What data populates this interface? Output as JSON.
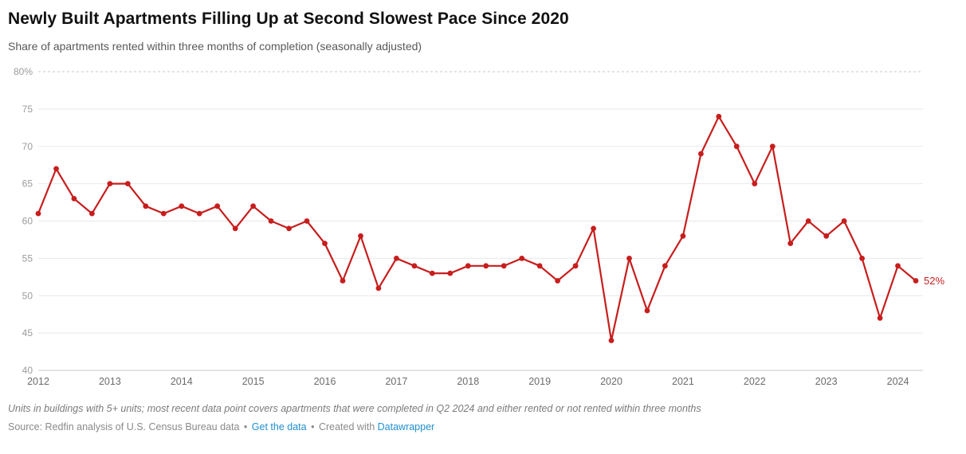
{
  "header": {
    "title": "Newly Built Apartments Filling Up at Second Slowest Pace Since 2020",
    "subtitle": "Share of apartments rented within three months of completion (seasonally adjusted)"
  },
  "chart_data": {
    "type": "line",
    "x_start_year": 2012,
    "period": "quarterly",
    "x_quarter_step": 0.25,
    "values": [
      61,
      67,
      63,
      61,
      65,
      65,
      62,
      61,
      62,
      61,
      62,
      59,
      62,
      60,
      59,
      60,
      57,
      52,
      58,
      51,
      55,
      54,
      53,
      53,
      54,
      54,
      54,
      55,
      54,
      52,
      54,
      59,
      44,
      55,
      48,
      54,
      58,
      69,
      74,
      70,
      65,
      70,
      57,
      60,
      58,
      60,
      55,
      47,
      54,
      52
    ],
    "ylim": [
      40,
      80
    ],
    "yticks": [
      40,
      45,
      50,
      55,
      60,
      65,
      70,
      75,
      80
    ],
    "ytick_labels": [
      "40",
      "45",
      "50",
      "55",
      "60",
      "65",
      "70",
      "75",
      "80%"
    ],
    "xticks": [
      2012,
      2013,
      2014,
      2015,
      2016,
      2017,
      2018,
      2019,
      2020,
      2021,
      2022,
      2023,
      2024
    ],
    "last_value_label": "52%",
    "grid": true,
    "legend": "none",
    "title": "Newly Built Apartments Filling Up at Second Slowest Pace Since 2020",
    "xlabel": "",
    "ylabel": ""
  },
  "colors": {
    "line": "#c71e1d",
    "point": "#c71e1d",
    "last_label": "#c71e1d",
    "grid": "#e8e8e8",
    "grid_edge": "#c9c9c9",
    "ytick_text": "#9b9b9b",
    "xtick_text": "#6b6b6b",
    "link": "#1f8fd0"
  },
  "footer": {
    "note": "Units in buildings with 5+ units; most recent data point covers apartments that were completed in Q2 2024 and either rented or not rented within three months",
    "source": "Source: Redfin analysis of U.S. Census Bureau data",
    "sep": "•",
    "get_data": "Get the data",
    "created_with": "Created with",
    "datawrapper": "Datawrapper"
  }
}
